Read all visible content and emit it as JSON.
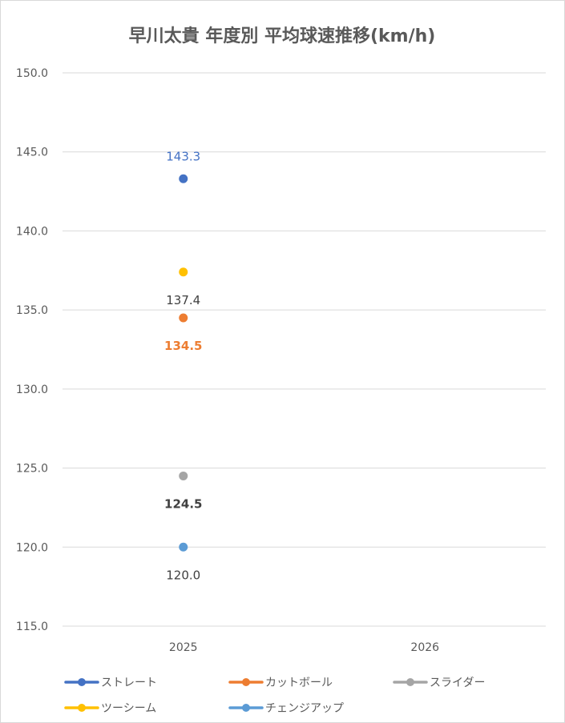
{
  "chart_data": {
    "type": "scatter",
    "title": "早川太貴 年度別 平均球速推移(km/h)",
    "categories": [
      "2025",
      "2026"
    ],
    "ylim": [
      115.0,
      150.0
    ],
    "yticks": [
      "150.0",
      "145.0",
      "140.0",
      "135.0",
      "130.0",
      "125.0",
      "120.0",
      "115.0"
    ],
    "ytick_values": [
      150,
      145,
      140,
      135,
      130,
      125,
      120,
      115
    ],
    "grid": true,
    "legend_position": "bottom",
    "series": [
      {
        "name": "ストレート",
        "color": "#4472C4",
        "values": [
          143.3,
          null
        ],
        "labels": [
          "143.3",
          ""
        ],
        "label_pos": "above",
        "label_color": "#4472C4",
        "label_bold": false
      },
      {
        "name": "カットボール",
        "color": "#ED7D31",
        "values": [
          134.5,
          null
        ],
        "labels": [
          "134.5",
          ""
        ],
        "label_pos": "below",
        "label_color": "#ED7D31",
        "label_bold": true
      },
      {
        "name": "スライダー",
        "color": "#A5A5A5",
        "values": [
          124.5,
          null
        ],
        "labels": [
          "124.5",
          ""
        ],
        "label_pos": "below",
        "label_color": "#404040",
        "label_bold": true
      },
      {
        "name": "ツーシーム",
        "color": "#FFC000",
        "values": [
          137.4,
          null
        ],
        "labels": [
          "137.4",
          ""
        ],
        "label_pos": "below",
        "label_color": "#404040",
        "label_bold": false
      },
      {
        "name": "チェンジアップ",
        "color": "#5B9BD5",
        "values": [
          120.0,
          null
        ],
        "labels": [
          "120.0",
          ""
        ],
        "label_pos": "below",
        "label_color": "#404040",
        "label_bold": false
      }
    ]
  }
}
